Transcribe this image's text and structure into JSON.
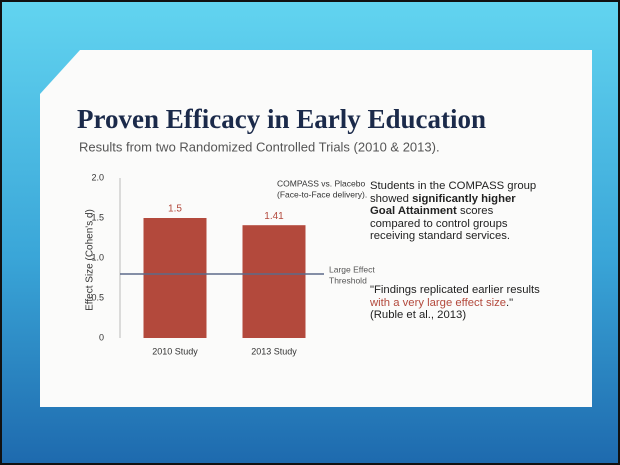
{
  "chart_data": {
    "type": "bar",
    "title": "Proven Efficacy in Early Education",
    "subtitle": "Results from two Randomized Controlled Trials (2010 & 2013).",
    "ylabel": "Effect Size (Cohen's d)",
    "categories": [
      "2010 Study",
      "2013 Study"
    ],
    "values": [
      1.5,
      1.41
    ],
    "color": "#b3493c",
    "ylim": [
      0,
      2
    ],
    "yticks": [
      0,
      0.5,
      {
        "value": 1,
        "label": "1.0"
      },
      1.5,
      {
        "value": 2,
        "label": "2.0"
      }
    ],
    "grid": false,
    "legend_note": [
      "COMPASS vs. Placebo",
      "(Face-to-Face delivery)."
    ],
    "threshold": {
      "value": 0.8,
      "label": [
        "Large Effect",
        "Threshold"
      ],
      "color": "#5d6a8a"
    },
    "annotations": {
      "summary": [
        "Students in the COMPASS group showed ",
        "significantly higher Goal Attainment",
        " scores compared to control groups receiving standard services."
      ],
      "quote": [
        "\"Findings replicated earlier results ",
        "with a very large effect size",
        ".\""
      ],
      "citation": "(Ruble et al., 2013)"
    }
  }
}
